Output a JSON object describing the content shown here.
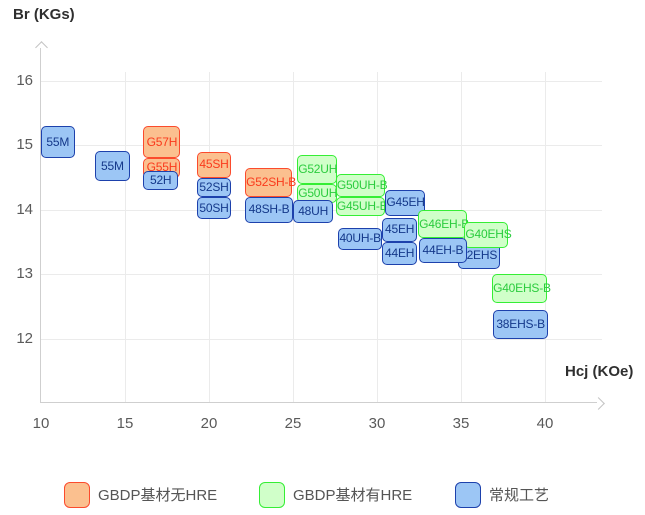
{
  "chart_data": {
    "type": "scatter",
    "variant": "labeled-range-boxes",
    "title": "",
    "xlabel": "Hcj (KOe)",
    "ylabel": "Br (KGs)",
    "x_ticks": [
      10,
      15,
      20,
      25,
      30,
      35,
      40
    ],
    "y_ticks": [
      16,
      15,
      14,
      13,
      12
    ],
    "xlim": [
      10,
      43.4
    ],
    "ylim": [
      11,
      16.5
    ],
    "grid": true,
    "legend_position": "bottom",
    "legend": [
      {
        "label": "GBDP基材无HRE",
        "series": "gbdp-no-hre",
        "fill": "#FBC08F",
        "border": "#FB4B2D",
        "text": "#FA3A1C"
      },
      {
        "label": "GBDP基材有HRE",
        "series": "gbdp-hre",
        "fill": "#D0FFC9",
        "border": "#35EE35",
        "text": "#2BCC3E"
      },
      {
        "label": "常规工艺",
        "series": "conventional",
        "fill": "#9CC6F5",
        "border": "#1D41AC",
        "text": "#14388A"
      }
    ],
    "points": [
      {
        "label": "55M",
        "series": "conventional",
        "hcj": [
          10.0,
          12.0
        ],
        "br": [
          14.8,
          15.3
        ]
      },
      {
        "label": "55M",
        "series": "conventional",
        "hcj": [
          13.2,
          15.3
        ],
        "br": [
          14.45,
          14.92
        ]
      },
      {
        "label": "G57H",
        "series": "gbdp-no-hre",
        "hcj": [
          16.1,
          18.3
        ],
        "br": [
          14.8,
          15.3
        ]
      },
      {
        "label": "G55H",
        "series": "gbdp-no-hre",
        "hcj": [
          16.1,
          18.3
        ],
        "br": [
          14.5,
          14.8
        ]
      },
      {
        "label": "52H",
        "series": "conventional",
        "hcj": [
          16.1,
          18.15
        ],
        "br": [
          14.3,
          14.6
        ]
      },
      {
        "label": "45SH",
        "series": "gbdp-no-hre",
        "hcj": [
          19.3,
          21.3
        ],
        "br": [
          14.5,
          14.9
        ]
      },
      {
        "label": "52SH",
        "series": "conventional",
        "hcj": [
          19.3,
          21.3
        ],
        "br": [
          14.2,
          14.5
        ]
      },
      {
        "label": "50SH",
        "series": "conventional",
        "hcj": [
          19.3,
          21.3
        ],
        "br": [
          13.85,
          14.2
        ]
      },
      {
        "label": "G52SH-B",
        "series": "gbdp-no-hre",
        "hcj": [
          22.15,
          24.95
        ],
        "br": [
          14.2,
          14.65
        ]
      },
      {
        "label": "48SH-B",
        "series": "conventional",
        "hcj": [
          22.15,
          25.0
        ],
        "br": [
          13.8,
          14.2
        ]
      },
      {
        "label": "G52UH",
        "series": "gbdp-hre",
        "hcj": [
          25.25,
          27.6
        ],
        "br": [
          14.4,
          14.85
        ]
      },
      {
        "label": "G50UH",
        "series": "gbdp-hre",
        "hcj": [
          25.25,
          27.6
        ],
        "br": [
          14.1,
          14.4
        ]
      },
      {
        "label": "48UH",
        "series": "conventional",
        "hcj": [
          25.0,
          27.4
        ],
        "br": [
          13.8,
          14.15
        ]
      },
      {
        "label": "G50UH-B",
        "series": "gbdp-hre",
        "hcj": [
          27.55,
          30.5
        ],
        "br": [
          14.2,
          14.55
        ]
      },
      {
        "label": "G45UH-B",
        "series": "gbdp-hre",
        "hcj": [
          27.55,
          30.5
        ],
        "br": [
          13.9,
          14.2
        ]
      },
      {
        "label": "40UH-B",
        "series": "conventional",
        "hcj": [
          27.7,
          30.3
        ],
        "br": [
          13.38,
          13.72
        ]
      },
      {
        "label": "G45EH",
        "series": "conventional",
        "hcj": [
          30.5,
          32.85
        ],
        "br": [
          13.9,
          14.3
        ]
      },
      {
        "label": "45EH",
        "series": "conventional",
        "hcj": [
          30.3,
          32.4
        ],
        "br": [
          13.5,
          13.87
        ]
      },
      {
        "label": "44EH",
        "series": "conventional",
        "hcj": [
          30.3,
          32.4
        ],
        "br": [
          13.15,
          13.5
        ]
      },
      {
        "label": "G46EH-B",
        "series": "gbdp-hre",
        "hcj": [
          32.45,
          35.35
        ],
        "br": [
          13.56,
          14.0
        ]
      },
      {
        "label": "42EHS",
        "series": "conventional",
        "hcj": [
          34.8,
          37.3
        ],
        "br": [
          13.08,
          13.48
        ]
      },
      {
        "label": "G40EHS",
        "series": "gbdp-hre",
        "hcj": [
          35.2,
          37.8
        ],
        "br": [
          13.41,
          13.81
        ]
      },
      {
        "label": "44EH-B",
        "series": "conventional",
        "hcj": [
          32.5,
          35.35
        ],
        "br": [
          13.17,
          13.56
        ]
      },
      {
        "label": "G40EHS-B",
        "series": "gbdp-hre",
        "hcj": [
          36.85,
          40.1
        ],
        "br": [
          12.55,
          13.0
        ]
      },
      {
        "label": "38EHS-B",
        "series": "conventional",
        "hcj": [
          36.9,
          40.2
        ],
        "br": [
          12.0,
          12.45
        ]
      }
    ]
  }
}
